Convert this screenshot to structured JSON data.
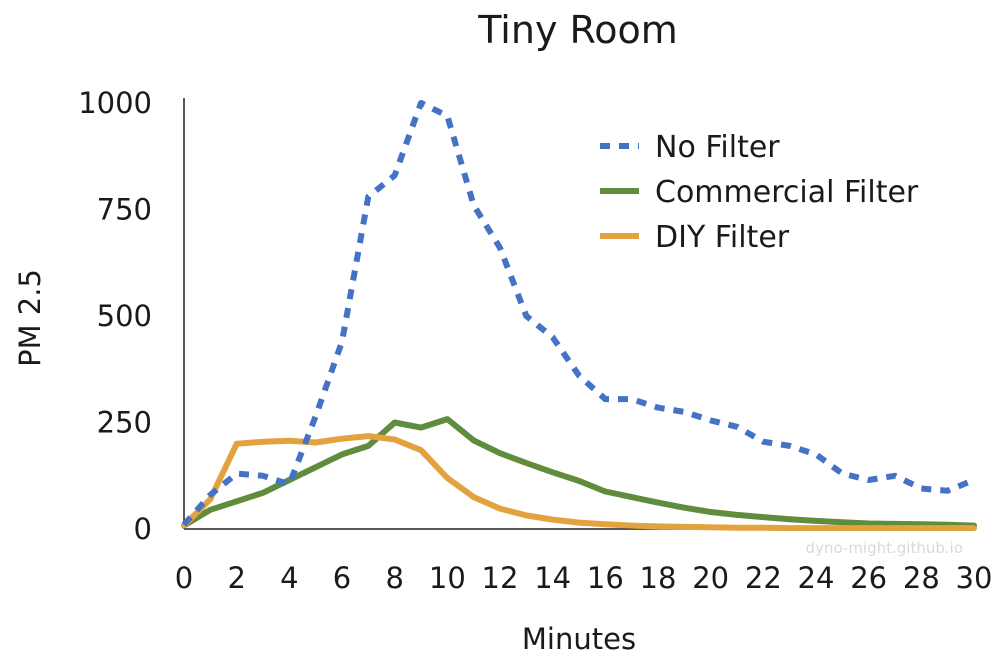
{
  "chart_data": {
    "type": "line",
    "title": "Tiny Room",
    "xlabel": "Minutes",
    "ylabel": "PM 2.5",
    "xlim": [
      0,
      30
    ],
    "ylim": [
      0,
      1000
    ],
    "x_ticks": [
      "0",
      "2",
      "4",
      "6",
      "8",
      "10",
      "12",
      "14",
      "16",
      "18",
      "20",
      "22",
      "24",
      "26",
      "28",
      "30"
    ],
    "y_ticks": [
      "0",
      "250",
      "500",
      "750",
      "1000"
    ],
    "x_tick_values": [
      0,
      2,
      4,
      6,
      8,
      10,
      12,
      14,
      16,
      18,
      20,
      22,
      24,
      26,
      28,
      30
    ],
    "y_tick_values": [
      0,
      250,
      500,
      750,
      1000
    ],
    "grid": false,
    "legend_position": "top-right",
    "x": [
      0,
      1,
      2,
      3,
      4,
      5,
      6,
      7,
      8,
      9,
      10,
      11,
      12,
      13,
      14,
      15,
      16,
      17,
      18,
      19,
      20,
      21,
      22,
      23,
      24,
      25,
      26,
      27,
      28,
      29,
      30
    ],
    "series": [
      {
        "name": "No Filter",
        "color": "#4472c4",
        "style": "dotted",
        "values": [
          10,
          80,
          130,
          125,
          105,
          265,
          440,
          780,
          830,
          1000,
          970,
          760,
          660,
          500,
          450,
          360,
          305,
          305,
          285,
          275,
          255,
          240,
          205,
          195,
          175,
          130,
          115,
          125,
          95,
          90,
          115
        ]
      },
      {
        "name": "Commercial Filter",
        "color": "#5f8c3d",
        "style": "solid",
        "values": [
          8,
          45,
          65,
          85,
          115,
          145,
          175,
          195,
          250,
          238,
          258,
          208,
          178,
          155,
          133,
          113,
          88,
          75,
          62,
          50,
          40,
          33,
          28,
          23,
          19,
          16,
          13,
          12,
          11,
          10,
          8
        ]
      },
      {
        "name": "DIY Filter",
        "color": "#e2a33f",
        "style": "solid",
        "values": [
          8,
          70,
          200,
          205,
          207,
          203,
          212,
          218,
          210,
          185,
          120,
          75,
          48,
          32,
          22,
          15,
          11,
          8,
          6,
          5,
          4,
          3,
          3,
          2,
          2,
          2,
          2,
          2,
          2,
          2,
          2
        ]
      }
    ]
  },
  "watermark": "dyno-might.github.io"
}
